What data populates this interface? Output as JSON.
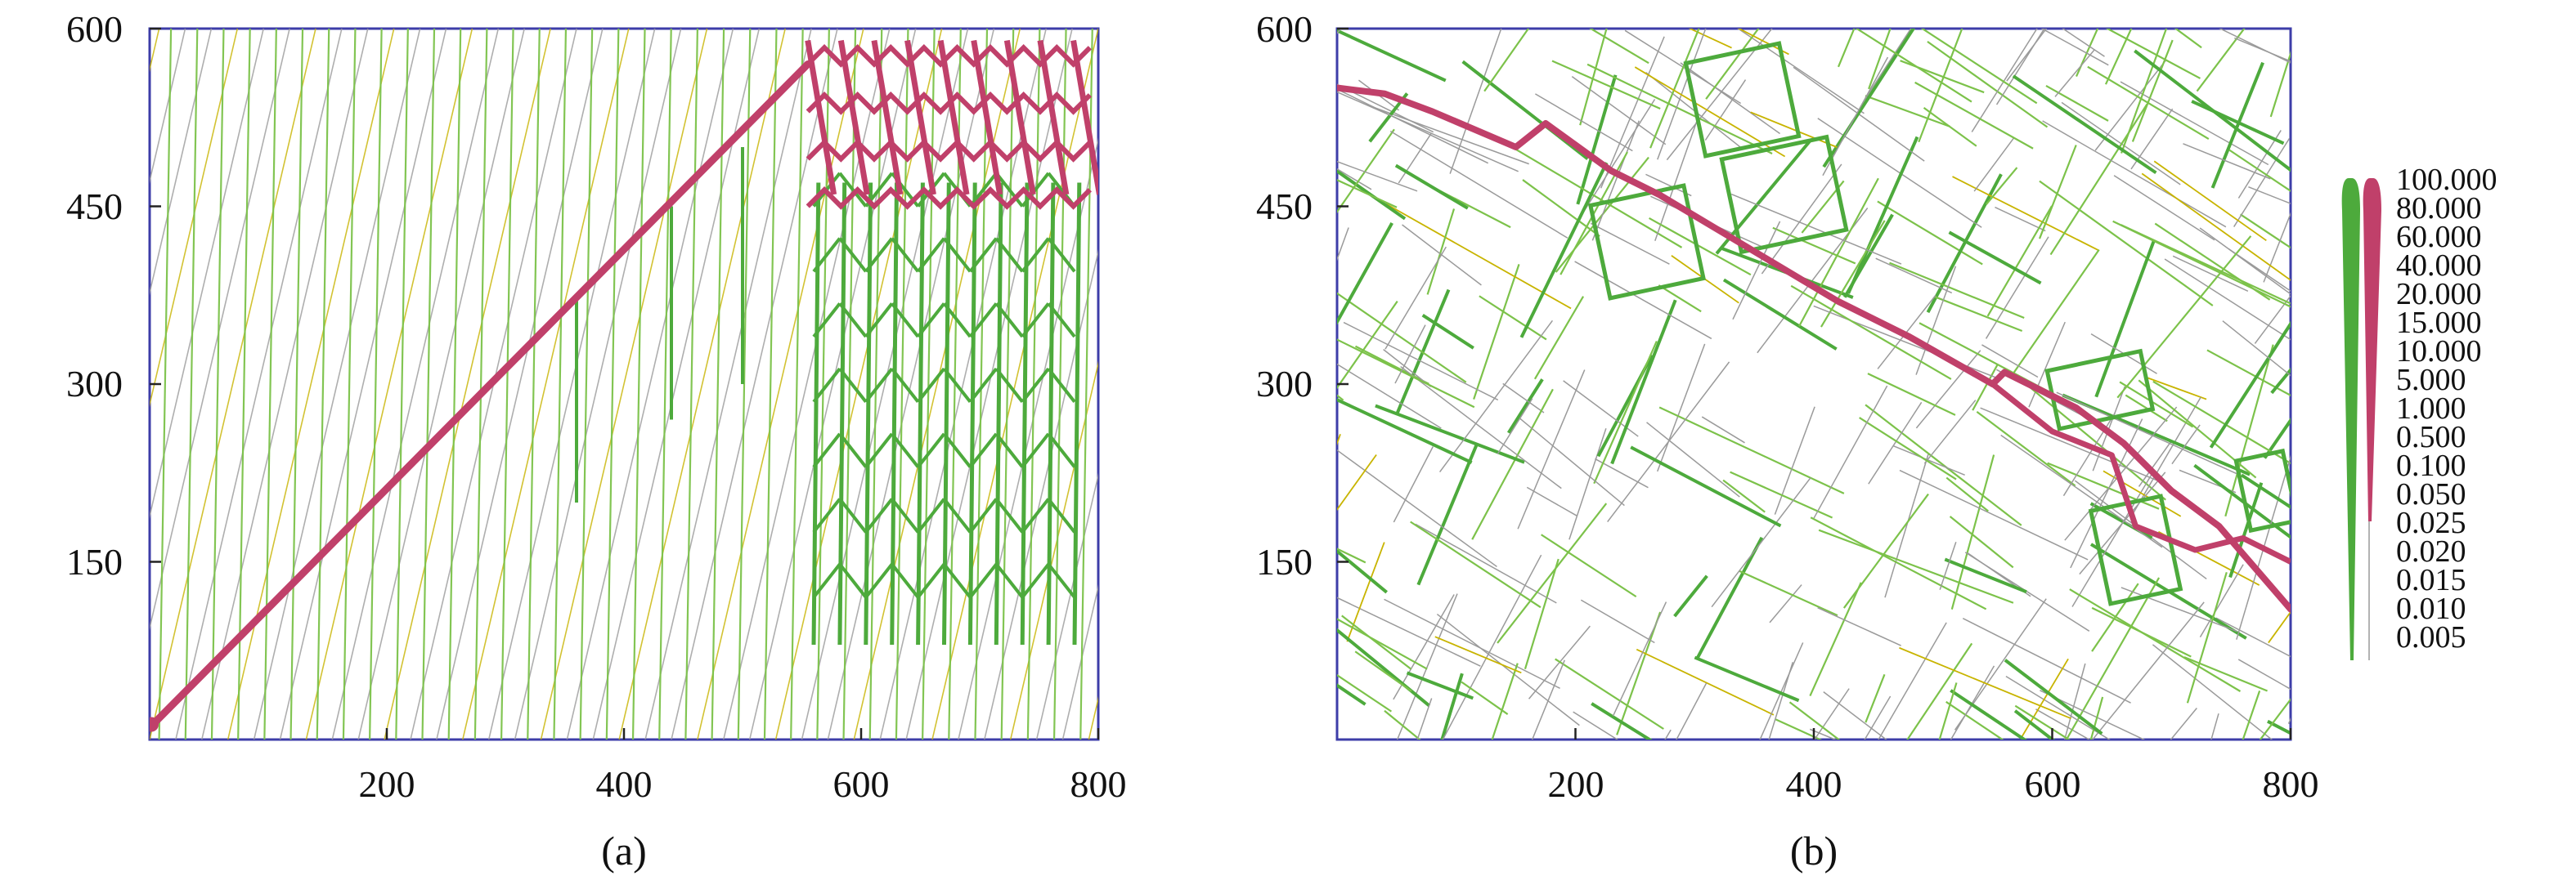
{
  "figure": {
    "panel_a": {
      "caption": "(a)",
      "x_ticks": [
        "200",
        "400",
        "600",
        "800"
      ],
      "y_ticks": [
        "150",
        "300",
        "450",
        "600"
      ]
    },
    "panel_b": {
      "caption": "(b)",
      "x_ticks": [
        "200",
        "400",
        "600",
        "800"
      ],
      "y_ticks": [
        "150",
        "300",
        "450",
        "600"
      ]
    },
    "legend": {
      "values": [
        "100.000",
        "80.000",
        "60.000",
        "40.000",
        "20.000",
        "15.000",
        "10.000",
        "5.000",
        "1.000",
        "0.500",
        "0.100",
        "0.050",
        "0.025",
        "0.020",
        "0.015",
        "0.010",
        "0.005"
      ]
    },
    "colors": {
      "main_path": "#c0406a",
      "high_flow_green": "#4daa3c",
      "low_flow_green": "#7cc24a",
      "faint_fracture": "#9a9a9a",
      "yellow_fracture": "#c8b400",
      "axis_frame": "#3d3da8"
    }
  },
  "chart_data": [
    {
      "type": "network",
      "panel": "(a)",
      "xlim": [
        0,
        800
      ],
      "ylim": [
        0,
        600
      ],
      "x_ticks": [
        200,
        400,
        600,
        800
      ],
      "y_ticks": [
        150,
        300,
        450,
        600
      ],
      "main_path": [
        [
          0,
          10
        ],
        [
          555,
          570
        ]
      ],
      "main_path_grid_region": {
        "x": [
          555,
          800
        ],
        "y": [
          440,
          590
        ]
      },
      "branches": [
        {
          "x": 360,
          "y": [
            200,
            370
          ]
        },
        {
          "x": 440,
          "y": [
            270,
            450
          ]
        },
        {
          "x": 500,
          "y": [
            300,
            500
          ]
        }
      ],
      "green_grid_region": {
        "x": [
          560,
          800
        ],
        "y": [
          80,
          470
        ]
      }
    },
    {
      "type": "network",
      "panel": "(b)",
      "xlim": [
        0,
        800
      ],
      "ylim": [
        0,
        600
      ],
      "x_ticks": [
        200,
        400,
        600,
        800
      ],
      "y_ticks": [
        150,
        300,
        450,
        600
      ],
      "main_path": [
        [
          0,
          550
        ],
        [
          40,
          545
        ],
        [
          80,
          530
        ],
        [
          150,
          500
        ],
        [
          175,
          520
        ],
        [
          230,
          480
        ],
        [
          270,
          460
        ],
        [
          320,
          430
        ],
        [
          420,
          370
        ],
        [
          480,
          340
        ],
        [
          550,
          300
        ],
        [
          560,
          310
        ],
        [
          620,
          280
        ],
        [
          660,
          250
        ],
        [
          700,
          210
        ],
        [
          740,
          180
        ],
        [
          800,
          110
        ]
      ],
      "secondary_path": [
        [
          550,
          300
        ],
        [
          600,
          260
        ],
        [
          650,
          240
        ],
        [
          670,
          180
        ],
        [
          720,
          160
        ],
        [
          760,
          170
        ],
        [
          800,
          150
        ]
      ]
    }
  ]
}
